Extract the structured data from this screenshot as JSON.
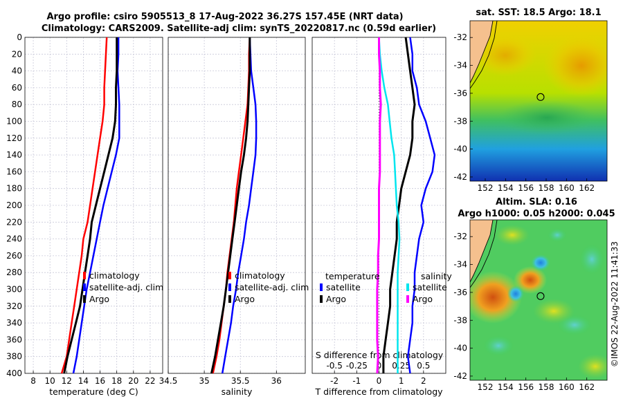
{
  "header": {
    "line1": "Argo profile: csiro 5905513_8 17-Aug-2022 36.27S 157.45E (NRT data)",
    "line2": "Climatology: CARS2009. Satellite-adj clim: synTS_20220817.nc (0.59d earlier)"
  },
  "depth_ticks": [
    "0",
    "20",
    "40",
    "60",
    "80",
    "100",
    "120",
    "140",
    "160",
    "180",
    "200",
    "220",
    "240",
    "260",
    "280",
    "300",
    "320",
    "340",
    "360",
    "380",
    "400"
  ],
  "colors": {
    "climatology": "#ff0000",
    "satellite": "#0000ff",
    "argo": "#000000",
    "salinity_sat": "#00e5ee",
    "salinity_clim": "#ff00ff"
  },
  "chart_data": [
    {
      "type": "line",
      "title": "",
      "xlabel": "temperature (deg C)",
      "ylabel": "depth",
      "xlim": [
        7,
        23.5
      ],
      "ylim": [
        400,
        0
      ],
      "xticks": [
        "8",
        "10",
        "12",
        "14",
        "16",
        "18",
        "20",
        "22"
      ],
      "legend": [
        "climatology",
        "satellite-adj. clim",
        "Argo"
      ],
      "series": [
        {
          "name": "climatology",
          "color": "#ff0000",
          "depth": [
            0,
            20,
            40,
            60,
            80,
            100,
            120,
            140,
            160,
            180,
            200,
            220,
            240,
            260,
            280,
            300,
            320,
            340,
            360,
            380,
            400
          ],
          "values": [
            16.8,
            16.7,
            16.6,
            16.5,
            16.5,
            16.3,
            16.0,
            15.7,
            15.4,
            15.1,
            14.8,
            14.5,
            14.0,
            13.8,
            13.5,
            13.2,
            12.9,
            12.6,
            12.3,
            12.0,
            11.4
          ]
        },
        {
          "name": "satellite-adj. clim",
          "color": "#0000ff",
          "depth": [
            0,
            20,
            40,
            60,
            80,
            100,
            120,
            140,
            160,
            180,
            200,
            220,
            240,
            260,
            280,
            300,
            320,
            340,
            360,
            380,
            400
          ],
          "values": [
            18.2,
            18.2,
            18.1,
            18.2,
            18.3,
            18.3,
            18.3,
            17.9,
            17.4,
            16.9,
            16.4,
            16.0,
            15.6,
            15.2,
            14.8,
            14.4,
            14.1,
            13.8,
            13.5,
            13.2,
            12.8
          ]
        },
        {
          "name": "Argo",
          "color": "#000000",
          "depth": [
            0,
            20,
            40,
            60,
            80,
            100,
            120,
            140,
            160,
            180,
            200,
            220,
            240,
            260,
            280,
            300,
            320,
            340,
            360,
            380,
            400
          ],
          "values": [
            18.0,
            18.0,
            18.0,
            17.9,
            17.9,
            17.8,
            17.5,
            17.0,
            16.5,
            16.0,
            15.5,
            15.0,
            14.8,
            14.5,
            14.2,
            13.9,
            13.6,
            13.1,
            12.6,
            12.1,
            11.7
          ]
        }
      ]
    },
    {
      "type": "line",
      "xlabel": "salinity",
      "ylabel": "depth",
      "xlim": [
        34.5,
        36.4
      ],
      "ylim": [
        400,
        0
      ],
      "xticks": [
        "34.5",
        "35",
        "35.5",
        "36"
      ],
      "legend": [
        "climatology",
        "satellite-adj. clim",
        "Argo"
      ],
      "series": [
        {
          "name": "climatology",
          "color": "#ff0000",
          "depth": [
            0,
            20,
            40,
            60,
            80,
            100,
            120,
            140,
            160,
            180,
            200,
            220,
            240,
            260,
            280,
            300,
            320,
            340,
            360,
            380,
            400
          ],
          "values": [
            35.63,
            35.62,
            35.62,
            35.61,
            35.6,
            35.57,
            35.54,
            35.51,
            35.48,
            35.45,
            35.43,
            35.41,
            35.38,
            35.35,
            35.32,
            35.3,
            35.27,
            35.24,
            35.21,
            35.17,
            35.12
          ]
        },
        {
          "name": "satellite-adj. clim",
          "color": "#0000ff",
          "depth": [
            0,
            20,
            40,
            60,
            80,
            100,
            120,
            140,
            160,
            180,
            200,
            220,
            240,
            260,
            280,
            300,
            320,
            340,
            360,
            380,
            400
          ],
          "values": [
            35.63,
            35.64,
            35.65,
            35.68,
            35.71,
            35.72,
            35.72,
            35.71,
            35.68,
            35.65,
            35.62,
            35.58,
            35.55,
            35.51,
            35.47,
            35.44,
            35.4,
            35.37,
            35.33,
            35.29,
            35.25
          ]
        },
        {
          "name": "Argo",
          "color": "#000000",
          "depth": [
            0,
            20,
            40,
            60,
            80,
            100,
            120,
            140,
            160,
            180,
            200,
            220,
            240,
            260,
            280,
            300,
            320,
            340,
            360,
            380,
            400
          ],
          "values": [
            35.63,
            35.63,
            35.63,
            35.62,
            35.61,
            35.6,
            35.58,
            35.55,
            35.51,
            35.48,
            35.45,
            35.42,
            35.39,
            35.36,
            35.33,
            35.3,
            35.27,
            35.23,
            35.19,
            35.15,
            35.1
          ]
        }
      ]
    },
    {
      "type": "line",
      "xlabel": "T difference from climatology",
      "xlabel_top": "S difference from climatology",
      "ylabel": "depth",
      "xlim": [
        -3.0,
        3.0
      ],
      "ylim": [
        400,
        0
      ],
      "xticks": [
        "-2",
        "-1",
        "0",
        "1",
        "2"
      ],
      "xticks_top": [
        "-0.5",
        "-0.25",
        "0",
        "0.25",
        "0.5"
      ],
      "legend_temperature_title": "temperature",
      "legend_salinity_title": "salinity",
      "legend_temperature": [
        "satellite",
        "Argo"
      ],
      "legend_salinity": [
        "satellite",
        "Argo"
      ],
      "series": [
        {
          "name": "T satellite",
          "color": "#0000ff",
          "depth": [
            0,
            20,
            40,
            60,
            80,
            100,
            120,
            140,
            160,
            180,
            200,
            220,
            240,
            260,
            280,
            300,
            320,
            340,
            360,
            380,
            400
          ],
          "values": [
            1.4,
            1.5,
            1.5,
            1.7,
            1.8,
            2.1,
            2.3,
            2.5,
            2.4,
            2.1,
            1.9,
            2.0,
            1.8,
            1.7,
            1.6,
            1.6,
            1.5,
            1.5,
            1.4,
            1.3,
            1.4
          ]
        },
        {
          "name": "T Argo",
          "color": "#000000",
          "depth": [
            0,
            20,
            40,
            60,
            80,
            100,
            120,
            140,
            160,
            180,
            200,
            220,
            240,
            260,
            280,
            300,
            320,
            340,
            360,
            380,
            400
          ],
          "values": [
            1.2,
            1.3,
            1.4,
            1.5,
            1.6,
            1.5,
            1.5,
            1.4,
            1.2,
            1.0,
            0.9,
            0.8,
            0.8,
            0.7,
            0.6,
            0.5,
            0.5,
            0.4,
            0.3,
            0.2,
            0.2
          ]
        },
        {
          "name": "S satellite",
          "color": "#00e5ee",
          "depth": [
            0,
            20,
            40,
            60,
            80,
            100,
            120,
            140,
            160,
            180,
            200,
            220,
            240,
            260,
            280,
            300,
            320,
            340,
            360,
            380,
            400
          ],
          "values": [
            0.0,
            0.01,
            0.03,
            0.06,
            0.1,
            0.12,
            0.14,
            0.17,
            0.18,
            0.19,
            0.2,
            0.22,
            0.23,
            0.22,
            0.21,
            0.21,
            0.21,
            0.21,
            0.21,
            0.21,
            0.21
          ]
        },
        {
          "name": "S Argo",
          "color": "#ff00ff",
          "depth": [
            0,
            20,
            40,
            60,
            80,
            100,
            120,
            140,
            160,
            180,
            200,
            220,
            240,
            260,
            280,
            300,
            320,
            340,
            360,
            380,
            400
          ],
          "values": [
            0.0,
            0.0,
            0.01,
            0.01,
            0.02,
            0.01,
            0.01,
            0.01,
            0.01,
            0.0,
            0.0,
            0.0,
            0.0,
            -0.01,
            -0.01,
            -0.02,
            -0.02,
            -0.02,
            -0.02,
            -0.01,
            -0.02
          ]
        }
      ]
    },
    {
      "type": "heatmap",
      "title": "sat. SST: 18.5 Argo: 18.1",
      "xticks": [
        "152",
        "154",
        "156",
        "158",
        "160",
        "162"
      ],
      "yticks": [
        "-32",
        "-34",
        "-36",
        "-38",
        "-40",
        "-42"
      ],
      "xlim": [
        150.5,
        164
      ],
      "ylim": [
        -42.3,
        -30.8
      ],
      "marker": {
        "lon": 157.45,
        "lat": -36.27
      }
    },
    {
      "type": "heatmap",
      "title": "Altim. SLA: 0.16",
      "subtitle": "Argo h1000: 0.05 h2000: 0.045",
      "xticks": [
        "152",
        "154",
        "156",
        "158",
        "160",
        "162"
      ],
      "yticks": [
        "-32",
        "-34",
        "-36",
        "-38",
        "-40",
        "-42"
      ],
      "xlim": [
        150.5,
        164
      ],
      "ylim": [
        -42.3,
        -30.8
      ],
      "marker": {
        "lon": 157.45,
        "lat": -36.27
      }
    }
  ],
  "watermark": "©IMOS 22-Aug-2022 11:41:33"
}
